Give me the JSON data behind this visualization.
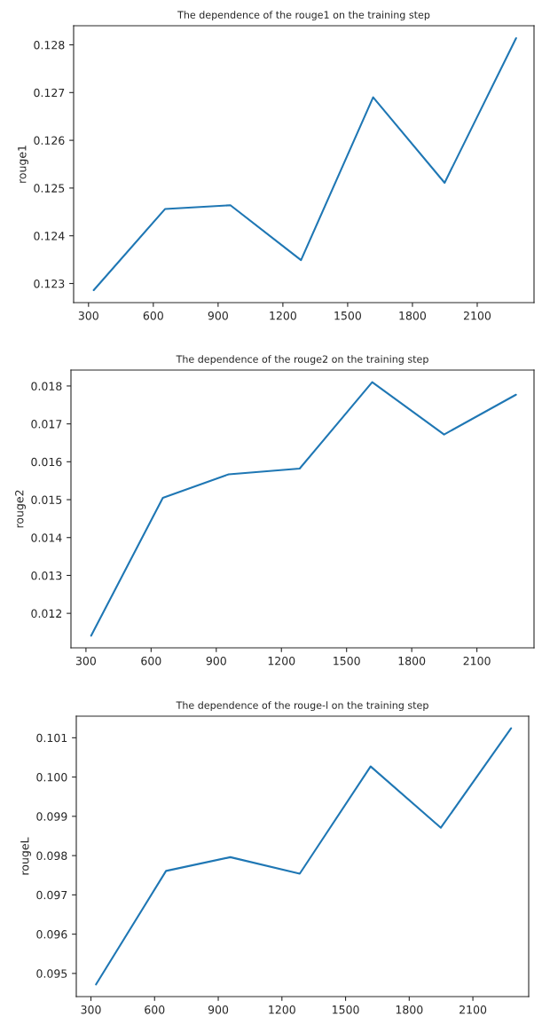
{
  "chart_data": [
    {
      "type": "line",
      "title": "The dependence of the rouge1 on the training step",
      "ylabel": "rouge1",
      "x": [
        324,
        654,
        957,
        1284,
        1618,
        1949,
        2280
      ],
      "series": [
        {
          "color": "#1f77b4",
          "values": [
            0.12286,
            0.12456,
            0.12464,
            0.12349,
            0.1269,
            0.12511,
            0.12814
          ]
        }
      ],
      "xlim": [
        231,
        2363
      ],
      "ylim": [
        0.1226,
        0.1284
      ],
      "xticks": [
        300,
        600,
        900,
        1200,
        1500,
        1800,
        2100
      ],
      "yticks": [
        0.123,
        0.124,
        0.125,
        0.126,
        0.127,
        0.128
      ],
      "grid": false
    },
    {
      "type": "line",
      "title": "The dependence of the rouge2 on the training step",
      "ylabel": "rouge2",
      "x": [
        324,
        654,
        957,
        1284,
        1618,
        1949,
        2280
      ],
      "series": [
        {
          "color": "#1f77b4",
          "values": [
            0.01141,
            0.01505,
            0.01567,
            0.01582,
            0.0181,
            0.01672,
            0.01777
          ]
        }
      ],
      "xlim": [
        231,
        2363
      ],
      "ylim": [
        0.01109,
        0.01842
      ],
      "xticks": [
        300,
        600,
        900,
        1200,
        1500,
        1800,
        2100
      ],
      "yticks": [
        0.012,
        0.013,
        0.014,
        0.015,
        0.016,
        0.017,
        0.018
      ],
      "grid": false
    },
    {
      "type": "line",
      "title": "The dependence of the rouge-l on the training step",
      "ylabel": "rougeL",
      "x": [
        324,
        654,
        957,
        1284,
        1618,
        1949,
        2280
      ],
      "series": [
        {
          "color": "#1f77b4",
          "values": [
            0.09472,
            0.09761,
            0.09796,
            0.09754,
            0.10027,
            0.09871,
            0.10124
          ]
        }
      ],
      "xlim": [
        231,
        2363
      ],
      "ylim": [
        0.09441,
        0.10155
      ],
      "xticks": [
        300,
        600,
        900,
        1200,
        1500,
        1800,
        2100
      ],
      "yticks": [
        {
          "value": 0.095,
          "label": "0.095"
        },
        {
          "value": 0.096,
          "label": "0.096"
        },
        {
          "value": 0.097,
          "label": "0.097"
        },
        {
          "value": 0.098,
          "label": "0.098"
        },
        {
          "value": 0.099,
          "label": "0.099"
        },
        {
          "value": 0.1,
          "label": "0.100"
        },
        {
          "value": 0.101,
          "label": "0.101"
        }
      ],
      "grid": false
    }
  ]
}
